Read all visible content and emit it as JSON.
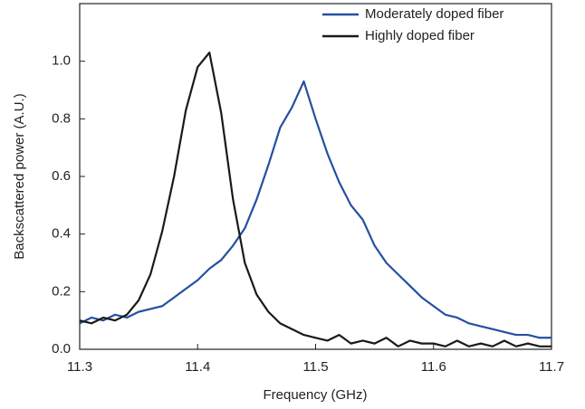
{
  "chart_data": {
    "type": "line",
    "x_label": "Frequency (GHz)",
    "y_label": "Backscattered power (A.U.)",
    "x": [
      11.3,
      11.31,
      11.32,
      11.33,
      11.34,
      11.35,
      11.36,
      11.37,
      11.38,
      11.39,
      11.4,
      11.41,
      11.42,
      11.43,
      11.44,
      11.45,
      11.46,
      11.47,
      11.48,
      11.49,
      11.5,
      11.51,
      11.52,
      11.53,
      11.54,
      11.55,
      11.56,
      11.57,
      11.58,
      11.59,
      11.6,
      11.61,
      11.62,
      11.63,
      11.64,
      11.65,
      11.66,
      11.67,
      11.68,
      11.69,
      11.7
    ],
    "series": [
      {
        "name": "Moderately doped fiber",
        "color": "#2550a0",
        "values": [
          0.09,
          0.11,
          0.1,
          0.12,
          0.11,
          0.13,
          0.14,
          0.15,
          0.18,
          0.21,
          0.24,
          0.28,
          0.31,
          0.36,
          0.42,
          0.52,
          0.64,
          0.77,
          0.84,
          0.93,
          0.8,
          0.68,
          0.58,
          0.5,
          0.45,
          0.36,
          0.3,
          0.26,
          0.22,
          0.18,
          0.15,
          0.12,
          0.11,
          0.09,
          0.08,
          0.07,
          0.06,
          0.05,
          0.05,
          0.04,
          0.04
        ]
      },
      {
        "name": "Highly doped fiber",
        "color": "#1a1a1a",
        "values": [
          0.1,
          0.09,
          0.11,
          0.1,
          0.12,
          0.17,
          0.26,
          0.41,
          0.6,
          0.83,
          0.98,
          1.03,
          0.82,
          0.52,
          0.3,
          0.19,
          0.13,
          0.09,
          0.07,
          0.05,
          0.04,
          0.03,
          0.05,
          0.02,
          0.03,
          0.02,
          0.04,
          0.01,
          0.03,
          0.02,
          0.02,
          0.01,
          0.03,
          0.01,
          0.02,
          0.01,
          0.03,
          0.01,
          0.02,
          0.01,
          0.01
        ]
      }
    ],
    "xlim": [
      11.3,
      11.7
    ],
    "xticks": [
      11.3,
      11.4,
      11.5,
      11.6,
      11.7
    ],
    "ylim": [
      0,
      1.2
    ],
    "yticks": [
      {
        "value": 0,
        "label": "0.0"
      },
      0.2,
      0.4,
      0.6,
      0.8,
      {
        "value": 1,
        "label": "1.0"
      }
    ],
    "legend": "upper right"
  }
}
